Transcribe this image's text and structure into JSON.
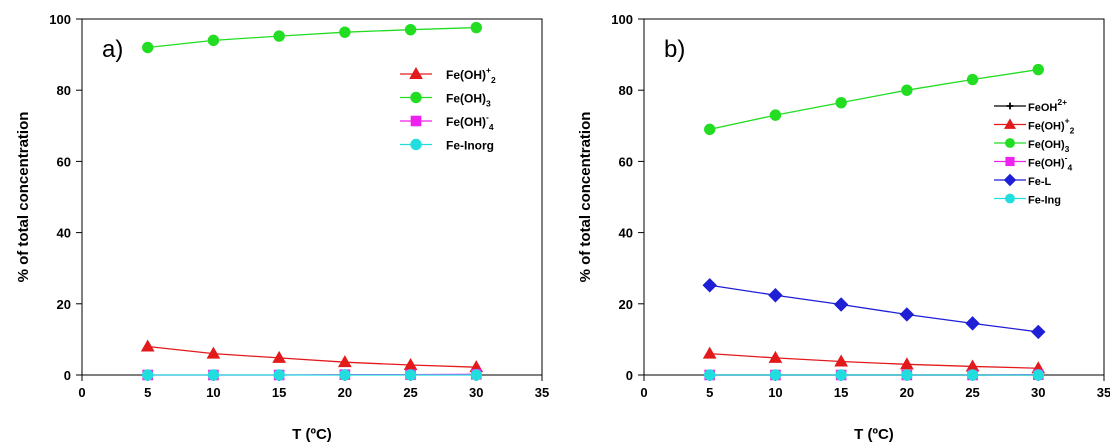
{
  "chart_data": [
    {
      "type": "line",
      "panel_label": "a)",
      "xlabel": "T (ºC)",
      "ylabel": "% of total concentration",
      "xlim": [
        0,
        35
      ],
      "ylim": [
        0,
        100
      ],
      "xticks": [
        0,
        5,
        10,
        15,
        20,
        25,
        30,
        35
      ],
      "yticks": [
        0,
        20,
        40,
        60,
        80,
        100
      ],
      "x": [
        5,
        10,
        15,
        20,
        25,
        30
      ],
      "legend_position": "upper-right",
      "grid": false,
      "series": [
        {
          "name": "Fe(OH)+2",
          "label_base": "Fe(OH)",
          "label_sup": "+",
          "label_sub": "2",
          "marker": "triangle",
          "color": "#e31a1c",
          "values": [
            8.0,
            6.0,
            4.8,
            3.6,
            2.8,
            2.2
          ]
        },
        {
          "name": "Fe(OH)3",
          "label_base": "Fe(OH)",
          "label_sup": "",
          "label_sub": "3",
          "marker": "circle",
          "color": "#22dd22",
          "values": [
            92.0,
            94.0,
            95.2,
            96.3,
            97.0,
            97.6
          ]
        },
        {
          "name": "Fe(OH)-4",
          "label_base": "Fe(OH)",
          "label_sup": "-",
          "label_sub": "4",
          "marker": "square",
          "color": "#ee22ee",
          "values": [
            0.0,
            0.0,
            0.0,
            0.1,
            0.1,
            0.2
          ]
        },
        {
          "name": "Fe-Inorg",
          "label_base": "Fe-Inorg",
          "label_sup": "",
          "label_sub": "",
          "marker": "circle",
          "color": "#22dddd",
          "values": [
            0.0,
            0.0,
            0.0,
            0.0,
            0.0,
            0.0
          ]
        }
      ]
    },
    {
      "type": "line",
      "panel_label": "b)",
      "xlabel": "T (ºC)",
      "ylabel": "% of total concentration",
      "xlim": [
        0,
        35
      ],
      "ylim": [
        0,
        100
      ],
      "xticks": [
        0,
        5,
        10,
        15,
        20,
        25,
        30,
        35
      ],
      "yticks": [
        0,
        20,
        40,
        60,
        80,
        100
      ],
      "x": [
        5,
        10,
        15,
        20,
        25,
        30
      ],
      "legend_position": "upper-right",
      "grid": false,
      "series": [
        {
          "name": "FeOH2+",
          "label_base": "FeOH",
          "label_sup": "2+",
          "label_sub": "",
          "marker": "plus",
          "color": "#000000",
          "values": [
            0.0,
            0.0,
            0.0,
            0.0,
            0.0,
            0.0
          ]
        },
        {
          "name": "Fe(OH)+2",
          "label_base": "Fe(OH)",
          "label_sup": "+",
          "label_sub": "2",
          "marker": "triangle",
          "color": "#e31a1c",
          "values": [
            6.0,
            4.8,
            3.8,
            3.0,
            2.4,
            1.9
          ]
        },
        {
          "name": "Fe(OH)3",
          "label_base": "Fe(OH)",
          "label_sup": "",
          "label_sub": "3",
          "marker": "circle",
          "color": "#22dd22",
          "values": [
            69.0,
            73.0,
            76.5,
            80.0,
            83.0,
            85.8
          ]
        },
        {
          "name": "Fe(OH)-4",
          "label_base": "Fe(OH)",
          "label_sup": "-",
          "label_sub": "4",
          "marker": "square",
          "color": "#ee22ee",
          "values": [
            0.0,
            0.0,
            0.0,
            0.0,
            0.0,
            0.1
          ]
        },
        {
          "name": "Fe-L",
          "label_base": "Fe-L",
          "label_sup": "",
          "label_sub": "",
          "marker": "diamond",
          "color": "#1f1fd6",
          "values": [
            25.2,
            22.4,
            19.8,
            17.0,
            14.5,
            12.1
          ]
        },
        {
          "name": "Fe-Ing",
          "label_base": "Fe-Ing",
          "label_sup": "",
          "label_sub": "",
          "marker": "circle",
          "color": "#22dddd",
          "values": [
            0.0,
            0.0,
            0.0,
            0.0,
            0.0,
            0.0
          ]
        }
      ]
    }
  ]
}
